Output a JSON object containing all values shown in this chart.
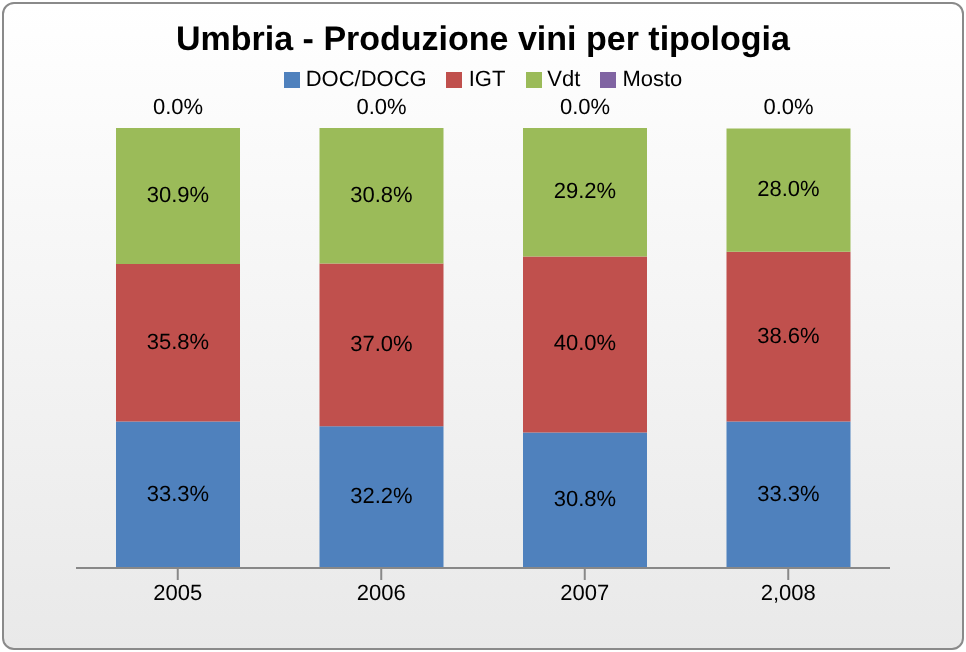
{
  "chart_data": {
    "type": "bar",
    "title": "Umbria - Produzione vini per tipologia",
    "categories": [
      "2005",
      "2006",
      "2007",
      "2,008"
    ],
    "stacked": true,
    "legend": "top",
    "grid": false,
    "series": [
      {
        "name": "DOC/DOCG",
        "color": "#4f81bd",
        "values": [
          33.3,
          32.2,
          30.8,
          33.3
        ],
        "value_labels": [
          "33.3%",
          "32.2%",
          "30.8%",
          "33.3%"
        ]
      },
      {
        "name": "IGT",
        "color": "#c0504d",
        "values": [
          35.8,
          37.0,
          40.0,
          38.6
        ],
        "value_labels": [
          "35.8%",
          "37.0%",
          "40.0%",
          "38.6%"
        ]
      },
      {
        "name": "Vdt",
        "color": "#9bbb59",
        "values": [
          30.9,
          30.8,
          29.2,
          28.0
        ],
        "value_labels": [
          "30.9%",
          "30.8%",
          "29.2%",
          "28.0%"
        ]
      },
      {
        "name": "Mosto",
        "color": "#8064a2",
        "values": [
          0,
          0,
          0,
          0
        ],
        "value_labels": [
          "0.0%",
          "0.0%",
          "0.0%",
          "0.0%"
        ]
      }
    ]
  }
}
